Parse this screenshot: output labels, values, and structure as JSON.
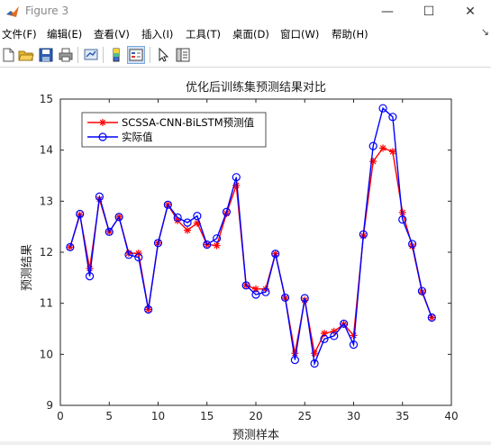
{
  "window": {
    "title": "Figure 3",
    "minimize_glyph": "—",
    "maximize_glyph": "☐",
    "close_glyph": "✕"
  },
  "menu": [
    "文件(F)",
    "编辑(E)",
    "查看(V)",
    "插入(I)",
    "工具(T)",
    "桌面(D)",
    "窗口(W)",
    "帮助(H)"
  ],
  "menu_dock_glyph": "↘",
  "toolbar": {
    "icons": [
      "new-figure-icon",
      "open-file-icon",
      "save-icon",
      "print-icon",
      "link-plot-icon",
      "insert-colorbar-icon",
      "insert-legend-icon",
      "pointer-icon",
      "property-inspector-icon"
    ]
  },
  "chart_data": {
    "type": "line",
    "title": "优化后训练集预测结果对比",
    "xlabel": "预测样本",
    "ylabel": "预测结果",
    "xlim": [
      0,
      40
    ],
    "ylim": [
      9,
      15
    ],
    "xticks": [
      0,
      5,
      10,
      15,
      20,
      25,
      30,
      35,
      40
    ],
    "yticks": [
      9,
      10,
      11,
      12,
      13,
      14,
      15
    ],
    "grid": false,
    "legend_position": "top-left",
    "x": [
      1,
      2,
      3,
      4,
      5,
      6,
      7,
      8,
      9,
      10,
      11,
      12,
      13,
      14,
      15,
      16,
      17,
      18,
      19,
      20,
      21,
      22,
      23,
      24,
      25,
      26,
      27,
      28,
      29,
      30,
      31,
      32,
      33,
      34,
      35,
      36,
      37,
      38
    ],
    "series": [
      {
        "name": "SCSSA-CNN-BiLSTM预测值",
        "color": "#ff0000",
        "marker": "asterisk",
        "values": [
          12.1,
          12.73,
          11.68,
          13.04,
          12.4,
          12.69,
          11.98,
          11.98,
          10.88,
          12.18,
          12.93,
          12.62,
          12.43,
          12.57,
          12.15,
          12.13,
          12.76,
          13.31,
          11.35,
          11.28,
          11.28,
          11.97,
          11.1,
          10.02,
          11.06,
          10.02,
          10.41,
          10.45,
          10.59,
          10.37,
          12.32,
          13.78,
          14.04,
          13.97,
          12.78,
          12.12,
          11.22,
          10.72
        ]
      },
      {
        "name": "实际值",
        "color": "#0000ff",
        "marker": "circle",
        "values": [
          12.1,
          12.75,
          11.53,
          13.09,
          12.4,
          12.69,
          11.95,
          11.9,
          10.88,
          12.18,
          12.93,
          12.68,
          12.58,
          12.71,
          12.15,
          12.27,
          12.79,
          13.47,
          11.35,
          11.17,
          11.22,
          11.97,
          11.11,
          9.89,
          11.1,
          9.82,
          10.3,
          10.36,
          10.6,
          10.19,
          12.35,
          14.08,
          14.82,
          14.65,
          12.64,
          12.16,
          11.24,
          10.72
        ]
      }
    ]
  }
}
